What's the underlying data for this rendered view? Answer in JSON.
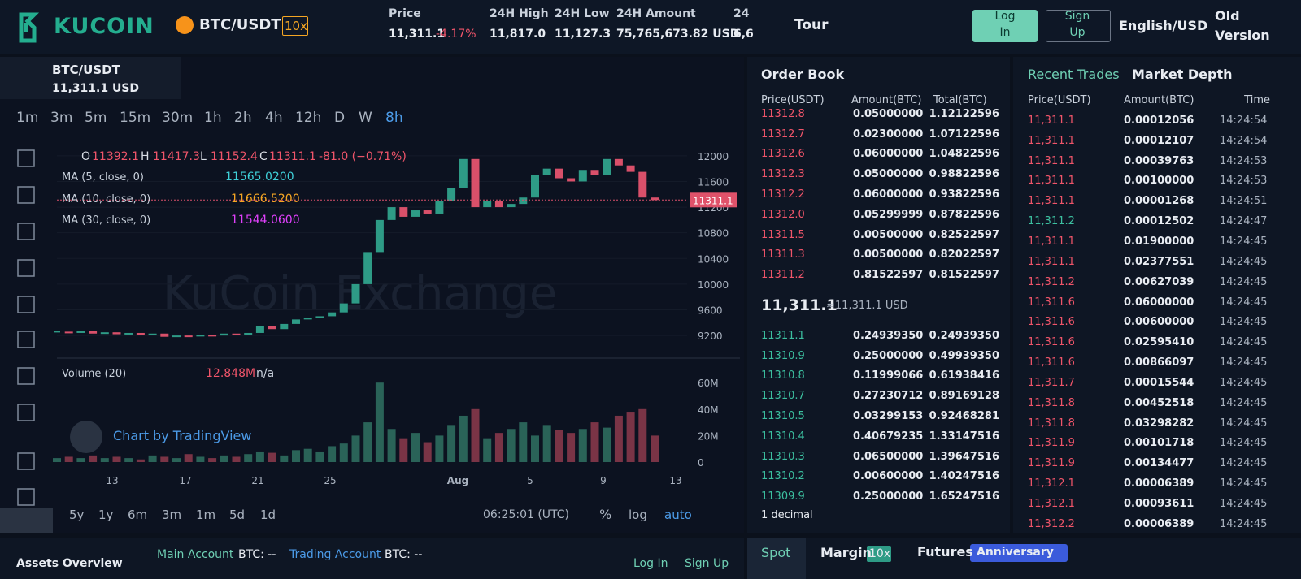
{
  "header": {
    "logo": "KUCOIN",
    "pair": "BTC/USDT",
    "leverage": "10x",
    "stats": [
      {
        "label": "Price",
        "value": "11,311.1",
        "change": "-4.17%"
      },
      {
        "label": "24H High",
        "value": "11,817.0"
      },
      {
        "label": "24H Low",
        "value": "11,127.3"
      },
      {
        "label": "24H Amount",
        "value": "75,765,673.82 USD"
      },
      {
        "label": "24",
        "value": "6,6"
      }
    ],
    "tour": "Tour",
    "login": "Log In",
    "signup": "Sign Up",
    "language": "English/USD",
    "old_version": "Old Version"
  },
  "chart": {
    "symbol": "BTC/USDT",
    "symbol_price": "11,311.1 USD",
    "intervals": [
      "1m",
      "3m",
      "5m",
      "15m",
      "30m",
      "1h",
      "2h",
      "4h",
      "12h",
      "D",
      "W",
      "8h"
    ],
    "legend": {
      "o_label": "O",
      "o": "11392.1",
      "h_label": "H",
      "h": "11417.3",
      "l_label": "L",
      "l": "11152.4",
      "c_label": "C",
      "c": "11311.1",
      "change": "-81.0 (−0.71%)"
    },
    "ma": [
      {
        "label": "MA (5, close, 0)",
        "value": "11565.0200",
        "color": "#3fd0d8"
      },
      {
        "label": "MA (10, close, 0)",
        "value": "11666.5200",
        "color": "#f5a623"
      },
      {
        "label": "MA (30, close, 0)",
        "value": "11544.0600",
        "color": "#e040fb"
      }
    ],
    "watermark": "KuCoin Exchange",
    "price_tag": "11311.1",
    "closes": [
      9260,
      9240,
      9270,
      9230,
      9250,
      9220,
      9240,
      9210,
      9230,
      9180,
      9200,
      9190,
      9210,
      9200,
      9230,
      9210,
      9240,
      9350,
      9300,
      9380,
      9450,
      9480,
      9500,
      9560,
      9700,
      10000,
      10500,
      11000,
      11200,
      11050,
      11150,
      11100,
      11300,
      11500,
      11950,
      11200,
      11300,
      11200,
      11250,
      11350,
      11700,
      11800,
      11650,
      11600,
      11780,
      11700,
      11950,
      11850,
      11750,
      11350,
      11311
    ],
    "ylim": [
      8860,
      12150
    ],
    "yticks": [
      12000,
      11600,
      11200,
      10800,
      10400,
      10000,
      9600,
      9200
    ],
    "volume_label": "Volume (20)",
    "volume_value": "12.848M",
    "volume_na": "n/a",
    "volumes": [
      3,
      4,
      3,
      5,
      3,
      4,
      3,
      2,
      5,
      4,
      3,
      6,
      4,
      3,
      5,
      4,
      6,
      8,
      7,
      5,
      9,
      10,
      8,
      12,
      14,
      20,
      30,
      60,
      25,
      18,
      22,
      15,
      20,
      28,
      35,
      40,
      18,
      22,
      25,
      30,
      20,
      28,
      24,
      22,
      25,
      30,
      26,
      35,
      38,
      40,
      20
    ],
    "vlim": [
      0,
      73
    ],
    "vticks": [
      0,
      {
        "value": 20,
        "label": "20M"
      },
      {
        "value": 40,
        "label": "40M"
      },
      {
        "value": 60,
        "label": "60M"
      }
    ],
    "x_labels": [
      "13",
      "17",
      "21",
      "25",
      "Aug",
      "5",
      "9",
      "13"
    ],
    "up_color": "#2e9b86",
    "down_color": "#d9506a",
    "tradingview": "Chart by TradingView",
    "ranges": [
      "5y",
      "1y",
      "6m",
      "3m",
      "1m",
      "5d",
      "1d"
    ],
    "clock": "06:25:01 (UTC)",
    "percent": "%",
    "log": "log",
    "auto": "auto"
  },
  "order_book": {
    "title": "Order Book",
    "headers": [
      "Price(USDT)",
      "Amount(BTC)",
      "Total(BTC)"
    ],
    "asks": [
      [
        "11312.8",
        "0.05000000",
        "1.12122596"
      ],
      [
        "11312.7",
        "0.02300000",
        "1.07122596"
      ],
      [
        "11312.6",
        "0.06000000",
        "1.04822596"
      ],
      [
        "11312.3",
        "0.05000000",
        "0.98822596"
      ],
      [
        "11312.2",
        "0.06000000",
        "0.93822596"
      ],
      [
        "11312.0",
        "0.05299999",
        "0.87822596"
      ],
      [
        "11311.5",
        "0.00500000",
        "0.82522597"
      ],
      [
        "11311.3",
        "0.00500000",
        "0.82022597"
      ],
      [
        "11311.2",
        "0.81522597",
        "0.81522597"
      ]
    ],
    "last": "11,311.1",
    "last_usd": "≈11,311.1 USD",
    "bids": [
      [
        "11311.1",
        "0.24939350",
        "0.24939350"
      ],
      [
        "11310.9",
        "0.25000000",
        "0.49939350"
      ],
      [
        "11310.8",
        "0.11999066",
        "0.61938416"
      ],
      [
        "11310.7",
        "0.27230712",
        "0.89169128"
      ],
      [
        "11310.5",
        "0.03299153",
        "0.92468281"
      ],
      [
        "11310.4",
        "0.40679235",
        "1.33147516"
      ],
      [
        "11310.3",
        "0.06500000",
        "1.39647516"
      ],
      [
        "11310.2",
        "0.00600000",
        "1.40247516"
      ],
      [
        "11309.9",
        "0.25000000",
        "1.65247516"
      ]
    ],
    "decimal": "1 decimal"
  },
  "trades": {
    "tabs": [
      "Recent Trades",
      "Market Depth"
    ],
    "headers": [
      "Price(USDT)",
      "Amount(BTC)",
      "Time"
    ],
    "rows": [
      {
        "price": "11,311.1",
        "amount": "0.00012056",
        "time": "14:24:54",
        "color": "#f0556a"
      },
      {
        "price": "11,311.1",
        "amount": "0.00012107",
        "time": "14:24:54",
        "color": "#f0556a"
      },
      {
        "price": "11,311.1",
        "amount": "0.00039763",
        "time": "14:24:53",
        "color": "#f0556a"
      },
      {
        "price": "11,311.1",
        "amount": "0.00100000",
        "time": "14:24:53",
        "color": "#f0556a"
      },
      {
        "price": "11,311.1",
        "amount": "0.00001268",
        "time": "14:24:51",
        "color": "#f0556a"
      },
      {
        "price": "11,311.2",
        "amount": "0.00012502",
        "time": "14:24:47",
        "color": "#3cc0a0"
      },
      {
        "price": "11,311.1",
        "amount": "0.01900000",
        "time": "14:24:45",
        "color": "#f0556a"
      },
      {
        "price": "11,311.1",
        "amount": "0.02377551",
        "time": "14:24:45",
        "color": "#f0556a"
      },
      {
        "price": "11,311.2",
        "amount": "0.00627039",
        "time": "14:24:45",
        "color": "#f0556a"
      },
      {
        "price": "11,311.6",
        "amount": "0.06000000",
        "time": "14:24:45",
        "color": "#f0556a"
      },
      {
        "price": "11,311.6",
        "amount": "0.00600000",
        "time": "14:24:45",
        "color": "#f0556a"
      },
      {
        "price": "11,311.6",
        "amount": "0.02595410",
        "time": "14:24:45",
        "color": "#f0556a"
      },
      {
        "price": "11,311.6",
        "amount": "0.00866097",
        "time": "14:24:45",
        "color": "#f0556a"
      },
      {
        "price": "11,311.7",
        "amount": "0.00015544",
        "time": "14:24:45",
        "color": "#f0556a"
      },
      {
        "price": "11,311.8",
        "amount": "0.00452518",
        "time": "14:24:45",
        "color": "#f0556a"
      },
      {
        "price": "11,311.8",
        "amount": "0.03298282",
        "time": "14:24:45",
        "color": "#f0556a"
      },
      {
        "price": "11,311.9",
        "amount": "0.00101718",
        "time": "14:24:45",
        "color": "#f0556a"
      },
      {
        "price": "11,311.9",
        "amount": "0.00134477",
        "time": "14:24:45",
        "color": "#f0556a"
      },
      {
        "price": "11,312.1",
        "amount": "0.00006389",
        "time": "14:24:45",
        "color": "#f0556a"
      },
      {
        "price": "11,312.1",
        "amount": "0.00093611",
        "time": "14:24:45",
        "color": "#f0556a"
      },
      {
        "price": "11,312.2",
        "amount": "0.00006389",
        "time": "14:24:45",
        "color": "#f0556a"
      }
    ]
  },
  "footer": {
    "assets": "Assets Overview",
    "main_account": "Main Account",
    "main_btc": "BTC: --",
    "trading_account": "Trading Account",
    "trading_btc": "BTC: --",
    "login": "Log In",
    "signup": "Sign Up",
    "spot": "Spot",
    "margin": "Margin",
    "margin_lev": "10x",
    "futures": "Futures",
    "anniversary": "Anniversary"
  }
}
